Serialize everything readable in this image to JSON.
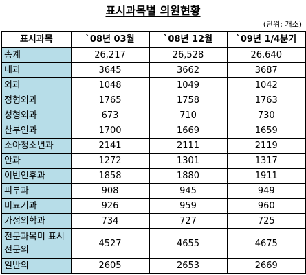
{
  "title": "표시과목별 의원현황",
  "unit": "(단위: 개소)",
  "table": {
    "headers": [
      "표시과목",
      "`08년 03월",
      "`08년 12월",
      "`09년 1/4분기"
    ],
    "rows": [
      {
        "label": "총계",
        "values": [
          "26,217",
          "26,528",
          "26,640"
        ]
      },
      {
        "label": "내과",
        "values": [
          "3645",
          "3662",
          "3687"
        ]
      },
      {
        "label": "외과",
        "values": [
          "1048",
          "1049",
          "1042"
        ]
      },
      {
        "label": "정형외과",
        "values": [
          "1765",
          "1758",
          "1763"
        ]
      },
      {
        "label": "성형외과",
        "values": [
          "673",
          "710",
          "730"
        ]
      },
      {
        "label": "산부인과",
        "values": [
          "1700",
          "1669",
          "1659"
        ]
      },
      {
        "label": "소아청소년과",
        "values": [
          "2141",
          "2111",
          "2119"
        ]
      },
      {
        "label": "안과",
        "values": [
          "1272",
          "1301",
          "1317"
        ]
      },
      {
        "label": "이빈인후과",
        "values": [
          "1858",
          "1880",
          "1911"
        ]
      },
      {
        "label": "피부과",
        "values": [
          "908",
          "945",
          "949"
        ]
      },
      {
        "label": "비뇨기과",
        "values": [
          "926",
          "959",
          "960"
        ]
      },
      {
        "label": "가정의학과",
        "values": [
          "734",
          "727",
          "725"
        ]
      },
      {
        "label": "전문과목미 표시전문의",
        "values": [
          "4527",
          "4655",
          "4675"
        ]
      },
      {
        "label": "일반의",
        "values": [
          "2605",
          "2653",
          "2669"
        ]
      }
    ]
  }
}
